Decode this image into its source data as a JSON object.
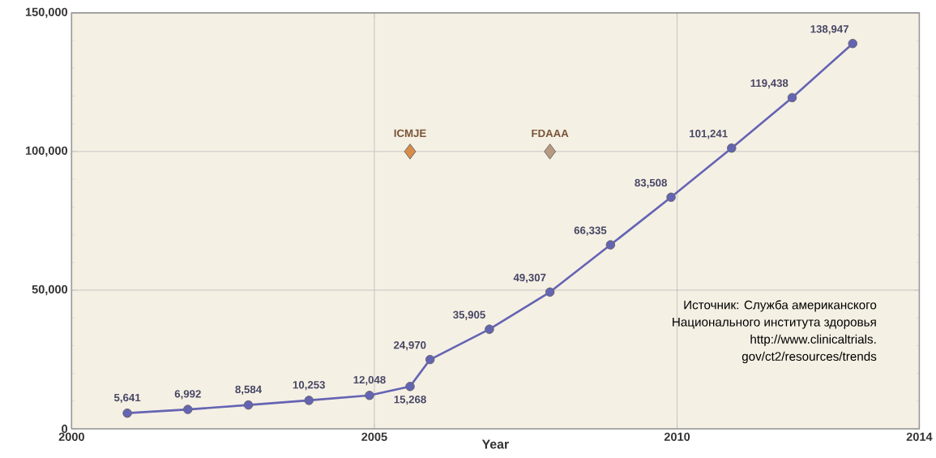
{
  "chart_data": {
    "type": "line",
    "xlabel": "Year",
    "xlim": [
      2000,
      2014
    ],
    "xticks": [
      2000,
      2005,
      2010,
      2014
    ],
    "ylim": [
      0,
      150000
    ],
    "yticks": [
      {
        "value": 0,
        "label": "0"
      },
      {
        "value": 50000,
        "label": "50,000"
      },
      {
        "value": 100000,
        "label": "100,000"
      },
      {
        "value": 150000,
        "label": "150,000"
      }
    ],
    "grid": true,
    "marker": "circle",
    "line_style": "solid",
    "series": [
      {
        "color": "#6464b4",
        "x": [
          2000.92,
          2001.92,
          2002.92,
          2003.92,
          2004.92,
          2005.59,
          2005.92,
          2006.9,
          2007.9,
          2008.9,
          2009.9,
          2010.9,
          2011.9,
          2012.9
        ],
        "values": [
          5641,
          6992,
          8584,
          10253,
          12048,
          15268,
          24970,
          35905,
          49307,
          66335,
          83508,
          101241,
          119438,
          138947
        ],
        "value_labels": [
          "5,641",
          "6,992",
          "8,584",
          "10,253",
          "12,048",
          "15,268",
          "24,970",
          "35,905",
          "49,307",
          "66,335",
          "83,508",
          "101,241",
          "119,438",
          "138,947"
        ]
      },
      {
        "type": "scatter",
        "name": "ICMJE",
        "marker": "diamond",
        "color": "#d98c4a",
        "x": [
          2005.59
        ],
        "values": [
          100000
        ]
      },
      {
        "type": "scatter",
        "name": "FDAAA",
        "marker": "diamond",
        "color": "#b89a80",
        "x": [
          2007.9
        ],
        "values": [
          100000
        ]
      }
    ],
    "annotations": [
      "Источник: Служба американского",
      "Национального института здоровья",
      "http://www.clinicaltrials.",
      "gov/ct2/resources/trends"
    ]
  }
}
